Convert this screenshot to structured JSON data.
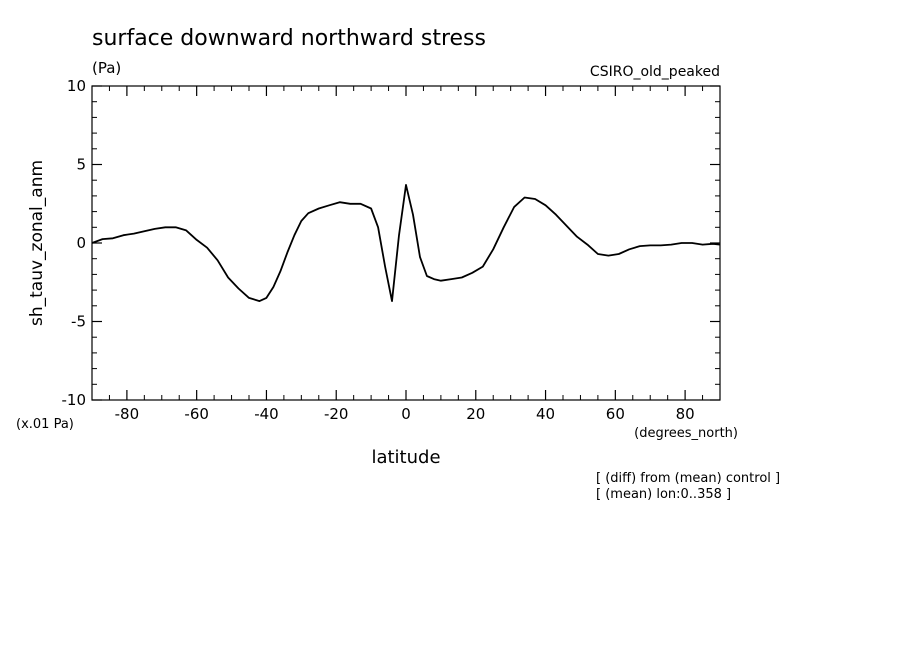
{
  "chart_data": {
    "type": "line",
    "title": "surface downward northward stress",
    "units_label": "(Pa)",
    "model_label": "CSIRO_old_peaked",
    "ylabel": "sh_tauv_zonal_anm",
    "y_scale_label": "(x.01 Pa)",
    "xlabel": "latitude",
    "x_units_label": "(degrees_north)",
    "notes": [
      "[ (diff) from (mean) control ]",
      "[ (mean) lon:0..358 ]"
    ],
    "xlim": [
      -90,
      90
    ],
    "ylim": [
      -10,
      10
    ],
    "x_ticks": [
      -80,
      -60,
      -40,
      -20,
      0,
      20,
      40,
      60,
      80
    ],
    "y_ticks": [
      10,
      5,
      0,
      -5,
      -10
    ],
    "grid": false,
    "series": [
      {
        "color": "#000000",
        "x": [
          -90,
          -87,
          -84,
          -81,
          -78,
          -75,
          -72,
          -69,
          -66,
          -63,
          -60,
          -57,
          -54,
          -51,
          -48,
          -45,
          -42,
          -40,
          -38,
          -36,
          -34,
          -32,
          -30,
          -28,
          -25,
          -22,
          -19,
          -16,
          -13,
          -10,
          -8,
          -6,
          -4,
          -2,
          0,
          2,
          4,
          6,
          8,
          10,
          13,
          16,
          19,
          22,
          25,
          28,
          31,
          34,
          37,
          40,
          43,
          46,
          49,
          52,
          55,
          58,
          61,
          64,
          67,
          70,
          73,
          76,
          79,
          82,
          85,
          88,
          90
        ],
        "y": [
          0.0,
          0.25,
          0.3,
          0.5,
          0.6,
          0.75,
          0.9,
          1.0,
          1.0,
          0.8,
          0.2,
          -0.3,
          -1.1,
          -2.2,
          -2.9,
          -3.5,
          -3.7,
          -3.5,
          -2.8,
          -1.8,
          -0.6,
          0.5,
          1.4,
          1.9,
          2.2,
          2.4,
          2.6,
          2.5,
          2.5,
          2.2,
          1.0,
          -1.5,
          -3.7,
          0.5,
          3.7,
          1.8,
          -0.9,
          -2.1,
          -2.3,
          -2.4,
          -2.3,
          -2.2,
          -1.9,
          -1.5,
          -0.4,
          1.0,
          2.3,
          2.9,
          2.8,
          2.4,
          1.8,
          1.1,
          0.4,
          -0.1,
          -0.7,
          -0.8,
          -0.7,
          -0.4,
          -0.2,
          -0.15,
          -0.15,
          -0.1,
          0.0,
          0.0,
          -0.1,
          -0.05,
          -0.1
        ]
      }
    ]
  }
}
